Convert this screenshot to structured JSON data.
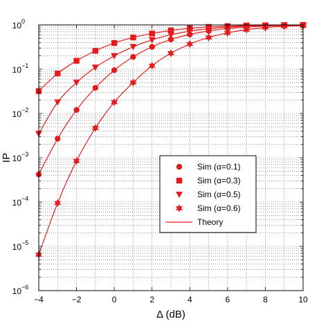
{
  "chart_data": {
    "type": "line",
    "title": "",
    "xlabel": "Δ (dB)",
    "ylabel": "IP",
    "xlim": [
      -4,
      10
    ],
    "ylim_log10": [
      -6,
      0
    ],
    "yscale": "log",
    "grid": true,
    "legend_position": "center-right",
    "x_ticks": [
      "−4",
      "−2",
      "0",
      "2",
      "4",
      "6",
      "8",
      "10"
    ],
    "y_ticks": [
      {
        "base": "10",
        "exp": "−6"
      },
      {
        "base": "10",
        "exp": "−5"
      },
      {
        "base": "10",
        "exp": "−4"
      },
      {
        "base": "10",
        "exp": "−3"
      },
      {
        "base": "10",
        "exp": "−2"
      },
      {
        "base": "10",
        "exp": "−1"
      },
      {
        "base": "10",
        "exp": "0"
      }
    ],
    "color": "#e41a1c",
    "x": [
      -4,
      -3,
      -2,
      -1,
      0,
      1,
      2,
      3,
      4,
      5,
      6,
      7,
      8,
      9,
      10
    ],
    "series": [
      {
        "name": "Sim (α=0.1)",
        "marker": "circle",
        "values": [
          0.00042,
          0.0027,
          0.012,
          0.038,
          0.095,
          0.19,
          0.32,
          0.47,
          0.61,
          0.73,
          0.83,
          0.89,
          0.94,
          0.97,
          0.98
        ]
      },
      {
        "name": "Sim (α=0.3)",
        "marker": "square",
        "values": [
          0.032,
          0.08,
          0.155,
          0.26,
          0.39,
          0.52,
          0.64,
          0.75,
          0.84,
          0.9,
          0.94,
          0.97,
          0.98,
          0.99,
          0.995
        ]
      },
      {
        "name": "Sim (α=0.5)",
        "marker": "triangle-down",
        "values": [
          0.0035,
          0.018,
          0.05,
          0.11,
          0.2,
          0.32,
          0.46,
          0.6,
          0.72,
          0.82,
          0.89,
          0.94,
          0.97,
          0.98,
          0.99
        ]
      },
      {
        "name": "Sim (α=0.6)",
        "marker": "star",
        "values": [
          6.5e-06,
          9.5e-05,
          0.00085,
          0.0047,
          0.018,
          0.05,
          0.12,
          0.23,
          0.37,
          0.52,
          0.66,
          0.78,
          0.87,
          0.93,
          0.96
        ]
      }
    ],
    "theory_label": "Theory"
  }
}
